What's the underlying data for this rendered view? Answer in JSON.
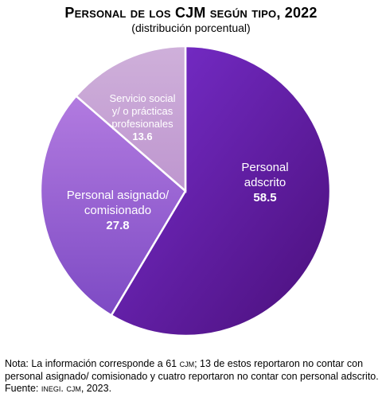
{
  "chart_data": {
    "type": "pie",
    "title": "Personal de los CJM según tipo, 2022",
    "subtitle": "(distribución porcentual)",
    "slices": [
      {
        "label": "Personal adscrito",
        "value": 58.5,
        "color": "#5b1aa6"
      },
      {
        "label": "Personal asignado/ comisionado",
        "value": 27.8,
        "color": "#9a5fd3"
      },
      {
        "label": "Servicio social y/ o prácticas profesionales",
        "value": 13.6,
        "color": "#c9a6d8"
      }
    ],
    "start_angle_deg": 0,
    "direction": "clockwise",
    "legend": "none",
    "data_labels": "inside"
  },
  "note": {
    "line1_prefix": "Nota: La información corresponde a 61 ",
    "line1_abbr": "cjm",
    "line1_suffix": "; 13 de estos reportaron no contar con personal asignado/ comisionado y cuatro reportaron no contar con personal adscrito.",
    "source_prefix": "Fuente: ",
    "source_abbr": "inegi. cjm",
    "source_suffix": ", 2023."
  }
}
